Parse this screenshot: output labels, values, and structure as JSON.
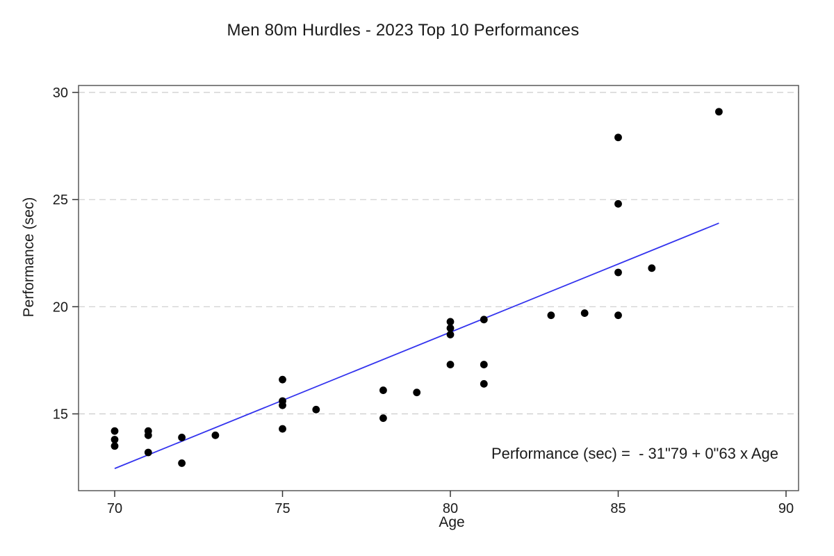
{
  "page": {
    "background": "#ffffff"
  },
  "chart_data": {
    "type": "scatter",
    "title": "Men 80m Hurdles - 2023 Top 10 Performances",
    "xlabel": "Age",
    "ylabel": "Performance (sec)",
    "xlim": [
      68.9,
      90.4
    ],
    "ylim": [
      11.4,
      30.3
    ],
    "x_ticks": [
      70,
      75,
      80,
      85,
      90
    ],
    "y_ticks": [
      15,
      20,
      25,
      30
    ],
    "grid": "horizontal-dashed",
    "legend": "none",
    "point_color": "#000000",
    "grid_color": "#cccccc",
    "frame_color": "#4d4d4d",
    "tick_color": "#333333",
    "text_color": "#1a1a1a",
    "points": [
      [
        70,
        14.2
      ],
      [
        70,
        13.8
      ],
      [
        70,
        13.5
      ],
      [
        71,
        14.2
      ],
      [
        71,
        14.0
      ],
      [
        71,
        13.2
      ],
      [
        72,
        13.9
      ],
      [
        72,
        12.7
      ],
      [
        73,
        14.0
      ],
      [
        75,
        16.6
      ],
      [
        75,
        15.6
      ],
      [
        75,
        15.4
      ],
      [
        75,
        14.3
      ],
      [
        76,
        15.2
      ],
      [
        78,
        16.1
      ],
      [
        78,
        14.8
      ],
      [
        79,
        16.0
      ],
      [
        80,
        19.3
      ],
      [
        80,
        19.0
      ],
      [
        80,
        18.7
      ],
      [
        80,
        17.3
      ],
      [
        81,
        19.4
      ],
      [
        81,
        17.3
      ],
      [
        81,
        16.4
      ],
      [
        83,
        19.6
      ],
      [
        84,
        19.7
      ],
      [
        85,
        27.9
      ],
      [
        85,
        24.8
      ],
      [
        85,
        21.6
      ],
      [
        85,
        19.6
      ],
      [
        86,
        21.8
      ],
      [
        88,
        29.1
      ]
    ],
    "regression_line": {
      "x1": 70,
      "y1": 12.45,
      "x2": 88,
      "y2": 23.9,
      "color": "#3333ee",
      "equation_label": "Performance (sec) =  - 31\"79 + 0\"63 x Age"
    }
  }
}
